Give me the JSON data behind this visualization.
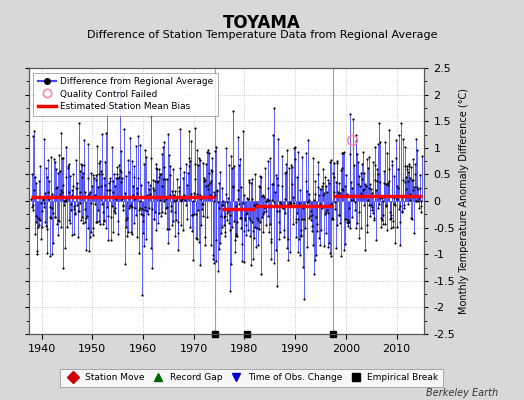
{
  "title": "TOYAMA",
  "subtitle": "Difference of Station Temperature Data from Regional Average",
  "ylabel": "Monthly Temperature Anomaly Difference (°C)",
  "xlim": [
    1937.5,
    2015.5
  ],
  "ylim": [
    -2.5,
    2.5
  ],
  "yticks": [
    -2.5,
    -2,
    -1.5,
    -1,
    -0.5,
    0,
    0.5,
    1,
    1.5,
    2,
    2.5
  ],
  "xticks": [
    1940,
    1950,
    1960,
    1970,
    1980,
    1990,
    2000,
    2010
  ],
  "start_year": 1938,
  "end_year": 2015,
  "seed": 42,
  "bias_segments": [
    {
      "x_start": 1938,
      "x_end": 1974.3,
      "bias": 0.07
    },
    {
      "x_start": 1975.5,
      "x_end": 1982.0,
      "bias": -0.15
    },
    {
      "x_start": 1982.0,
      "x_end": 1997.5,
      "bias": -0.1
    },
    {
      "x_start": 1997.5,
      "x_end": 2015,
      "bias": 0.1
    }
  ],
  "break_lines": [
    1974.3,
    1997.5
  ],
  "empirical_breaks": [
    1974.3,
    1980.5,
    1997.5
  ],
  "qc_failed_x": 2001.3,
  "qc_failed_y": 1.15,
  "line_color": "#4444ff",
  "dot_color": "#000000",
  "bias_color": "#ff0000",
  "bg_color": "#d8d8d8",
  "plot_bg_color": "#ffffff",
  "watermark": "Berkeley Earth",
  "noise_scale": 0.55,
  "title_fontsize": 12,
  "subtitle_fontsize": 8,
  "tick_fontsize": 8,
  "ylabel_fontsize": 7
}
